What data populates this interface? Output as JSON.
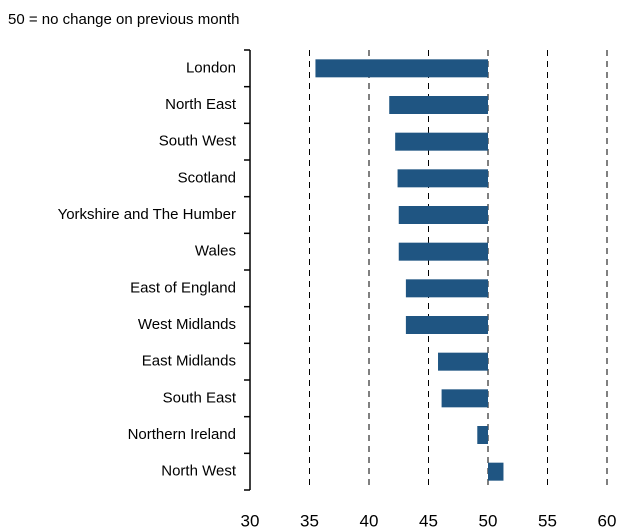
{
  "chart_data": {
    "type": "hbar",
    "subtitle": "50 = no change on previous month",
    "categories": [
      "London",
      "North East",
      "South West",
      "Scotland",
      "Yorkshire and The Humber",
      "Wales",
      "East of England",
      "West Midlands",
      "East Midlands",
      "South East",
      "Northern Ireland",
      "North West"
    ],
    "values": [
      35.5,
      41.7,
      42.2,
      42.4,
      42.5,
      42.5,
      43.1,
      43.1,
      45.8,
      46.1,
      49.1,
      51.3
    ],
    "baseline": 50,
    "color": "#1f5582",
    "xlim": [
      30,
      60
    ],
    "xticks": [
      30,
      35,
      40,
      45,
      50,
      55,
      60
    ],
    "grid": true
  }
}
